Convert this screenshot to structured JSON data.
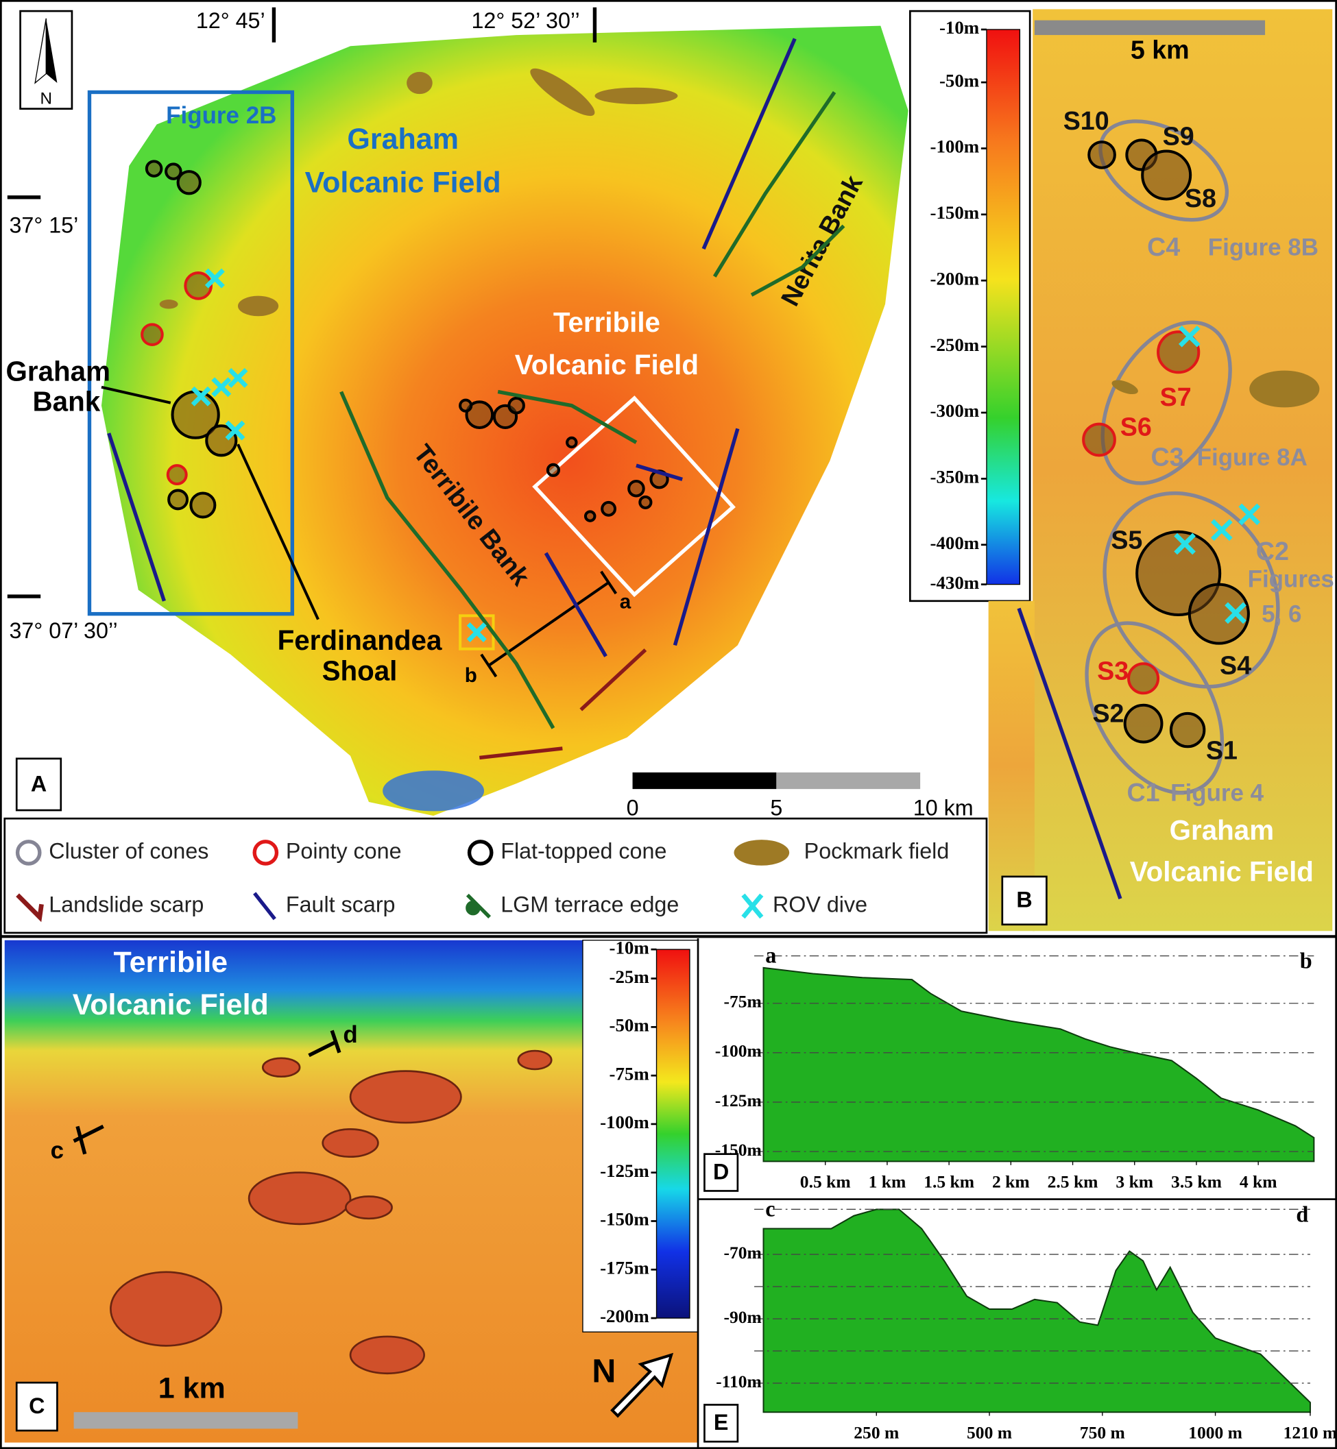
{
  "panel_a": {
    "label": "A",
    "north": "N",
    "longitudes": [
      "12° 45’",
      "12° 52’ 30’’"
    ],
    "latitudes": [
      "37° 15’",
      "37° 07’ 30’’"
    ],
    "figure_ref": "Figure 2B",
    "graham_field": [
      "Graham",
      "Volcanic Field"
    ],
    "terribile_field": [
      "Terribile",
      "Volcanic Field"
    ],
    "terribile_bank": "Terribile Bank",
    "nerita_bank": "Nerita Bank",
    "graham_bank": [
      "Graham",
      "Bank"
    ],
    "ferdinandea": [
      "Ferdinandea",
      "Shoal"
    ],
    "profile_ends": [
      "a",
      "b"
    ],
    "colorbar": {
      "lim": [
        -430,
        -10
      ],
      "ticks": [
        {
          "value": -10,
          "label": "-10m"
        },
        {
          "value": -50,
          "label": "-50m"
        },
        {
          "value": -100,
          "label": "-100m"
        },
        {
          "value": -150,
          "label": "-150m"
        },
        {
          "value": -200,
          "label": "-200m"
        },
        {
          "value": -250,
          "label": "-250m"
        },
        {
          "value": -300,
          "label": "-300m"
        },
        {
          "value": -350,
          "label": "-350m"
        },
        {
          "value": -400,
          "label": "-400m"
        },
        {
          "value": -430,
          "label": "-430m"
        }
      ]
    },
    "scale_bar": {
      "lim": [
        0,
        10
      ],
      "ticks": [
        0,
        5,
        {
          "value": 10,
          "label": "10 km"
        }
      ]
    }
  },
  "legend": [
    "Cluster of cones",
    "Pointy cone",
    "Flat-topped cone",
    "Pockmark field",
    "Landslide scarp",
    "Fault scarp",
    "LGM terrace edge",
    "ROV dive"
  ],
  "panel_b": {
    "label": "B",
    "scale": "5 km",
    "sites": [
      "S1",
      "S2",
      "S3",
      "S4",
      "S5",
      "S6",
      "S7",
      "S8",
      "S9",
      "S10"
    ],
    "clusters": [
      {
        "name": "C1",
        "ref": [
          "Figure 4"
        ]
      },
      {
        "name": "C2",
        "ref": [
          "Figures",
          "5, 6"
        ]
      },
      {
        "name": "C3",
        "ref": [
          "Figure 8A"
        ]
      },
      {
        "name": "C4",
        "ref": [
          "Figure 8B"
        ]
      }
    ],
    "field": [
      "Graham",
      "Volcanic Field"
    ]
  },
  "panel_c": {
    "label": "C",
    "field": [
      "Terribile",
      "Volcanic Field"
    ],
    "profile_ends": [
      "c",
      "d"
    ],
    "scale": "1 km",
    "north": "N",
    "colorbar": {
      "lim": [
        -200,
        -10
      ],
      "ticks": [
        {
          "value": -10,
          "label": "-10m"
        },
        {
          "value": -25,
          "label": "-25m"
        },
        {
          "value": -50,
          "label": "-50m"
        },
        {
          "value": -75,
          "label": "-75m"
        },
        {
          "value": -100,
          "label": "-100m"
        },
        {
          "value": -125,
          "label": "-125m"
        },
        {
          "value": -150,
          "label": "-150m"
        },
        {
          "value": -175,
          "label": "-175m"
        },
        {
          "value": -200,
          "label": "-200m"
        }
      ]
    }
  },
  "panel_d": {
    "type": "area",
    "label": "D",
    "ends": [
      "a",
      "b"
    ],
    "color": "#21b021",
    "distance": [
      0,
      0.4,
      0.8,
      1.2,
      1.35,
      1.6,
      2.0,
      2.4,
      2.6,
      2.8,
      3.0,
      3.3,
      3.5,
      3.7,
      4.0,
      4.3,
      4.45
    ],
    "depth": [
      -57,
      -60,
      -62,
      -63,
      -70,
      -79,
      -84,
      -88,
      -93,
      -97,
      -100,
      -104,
      -113,
      -123,
      -129,
      -137,
      -143
    ],
    "xlim": [
      0,
      4.45
    ],
    "ylim": [
      -155,
      -51
    ],
    "xticks": [
      {
        "value": 0.5,
        "label": "0.5 km"
      },
      {
        "value": 1,
        "label": "1 km"
      },
      {
        "value": 1.5,
        "label": "1.5 km"
      },
      {
        "value": 2,
        "label": "2 km"
      },
      {
        "value": 2.5,
        "label": "2.5 km"
      },
      {
        "value": 3,
        "label": "3 km"
      },
      {
        "value": 3.5,
        "label": "3.5 km"
      },
      {
        "value": 4,
        "label": "4 km"
      }
    ],
    "yticks": [
      {
        "value": -75,
        "label": "-75m"
      },
      {
        "value": -100,
        "label": "-100m"
      },
      {
        "value": -125,
        "label": "-125m"
      },
      {
        "value": -150,
        "label": "-150m"
      }
    ]
  },
  "panel_e": {
    "type": "area",
    "label": "E",
    "ends": [
      "c",
      "d"
    ],
    "color": "#21b021",
    "distance": [
      0,
      150,
      200,
      250,
      300,
      350,
      400,
      450,
      500,
      550,
      600,
      650,
      700,
      740,
      780,
      810,
      840,
      870,
      900,
      950,
      1000,
      1100,
      1210
    ],
    "depth": [
      -62,
      -62,
      -58,
      -56,
      -56,
      -62,
      -72,
      -83,
      -87,
      -87,
      -84,
      -85,
      -91,
      -92,
      -75,
      -69,
      -72,
      -81,
      -74,
      -88,
      -96,
      -101,
      -116
    ],
    "xlim": [
      0,
      1210
    ],
    "ylim": [
      -119,
      -56
    ],
    "xticks": [
      {
        "value": 250,
        "label": "250 m"
      },
      {
        "value": 500,
        "label": "500 m"
      },
      {
        "value": 750,
        "label": "750 m"
      },
      {
        "value": 1000,
        "label": "1000 m"
      },
      {
        "value": 1210,
        "label": "1210 m"
      }
    ],
    "yticks": [
      {
        "value": -70,
        "label": "-70m"
      },
      {
        "value": -90,
        "label": "-90m"
      },
      {
        "value": -110,
        "label": "-110m"
      }
    ],
    "grid": [
      -80,
      -100
    ]
  }
}
